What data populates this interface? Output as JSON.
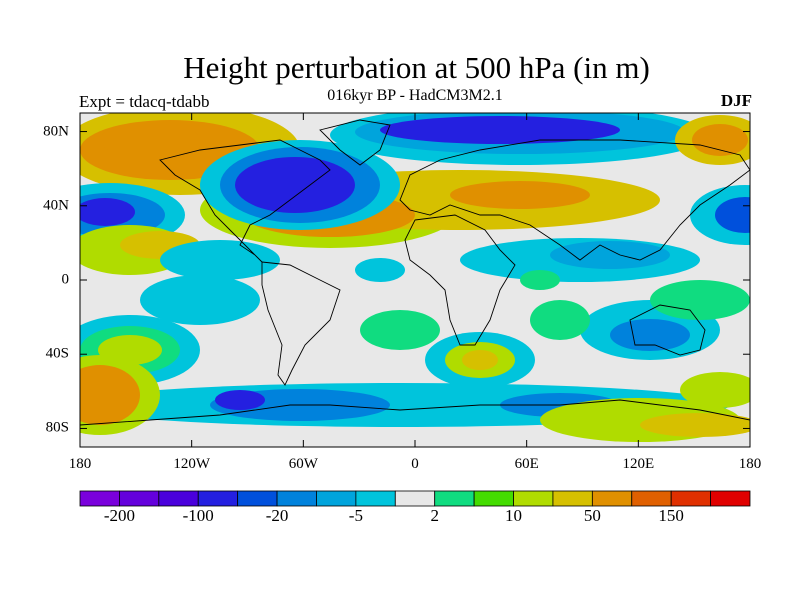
{
  "title": "Height perturbation at 500 hPa (in m)",
  "subtitle": "016kyr BP - HadCM3M2.1",
  "experiment": "Expt = tdacq-tdabb",
  "season": "DJF",
  "map": {
    "lon_range": [
      -180,
      180
    ],
    "lat_range": [
      -90,
      90
    ],
    "y_ticks": [
      {
        "lat": 80,
        "label": "80N"
      },
      {
        "lat": 40,
        "label": "40N"
      },
      {
        "lat": 0,
        "label": "0"
      },
      {
        "lat": -40,
        "label": "40S"
      },
      {
        "lat": -80,
        "label": "80S"
      }
    ],
    "x_ticks": [
      {
        "lon": -180,
        "label": "180"
      },
      {
        "lon": -120,
        "label": "120W"
      },
      {
        "lon": -60,
        "label": "60W"
      },
      {
        "lon": 0,
        "label": "0"
      },
      {
        "lon": 60,
        "label": "60E"
      },
      {
        "lon": 120,
        "label": "120E"
      },
      {
        "lon": 180,
        "label": "180"
      }
    ]
  },
  "colorbar": {
    "colors": [
      "#7a00dc",
      "#6400dc",
      "#4a00dc",
      "#2420e0",
      "#0050dc",
      "#0082dc",
      "#00a4dc",
      "#00c4dc",
      "#e8e8e8",
      "#10dc80",
      "#44dc00",
      "#b0dc00",
      "#d6c000",
      "#e09000",
      "#e06000",
      "#e03000",
      "#e00000"
    ],
    "labels": [
      {
        "boundary": 1,
        "label": "-200"
      },
      {
        "boundary": 3,
        "label": "-100"
      },
      {
        "boundary": 5,
        "label": "-20"
      },
      {
        "boundary": 7,
        "label": "-5"
      },
      {
        "boundary": 9,
        "label": "2"
      },
      {
        "boundary": 11,
        "label": "10"
      },
      {
        "boundary": 13,
        "label": "50"
      },
      {
        "boundary": 15,
        "label": "150"
      }
    ]
  }
}
